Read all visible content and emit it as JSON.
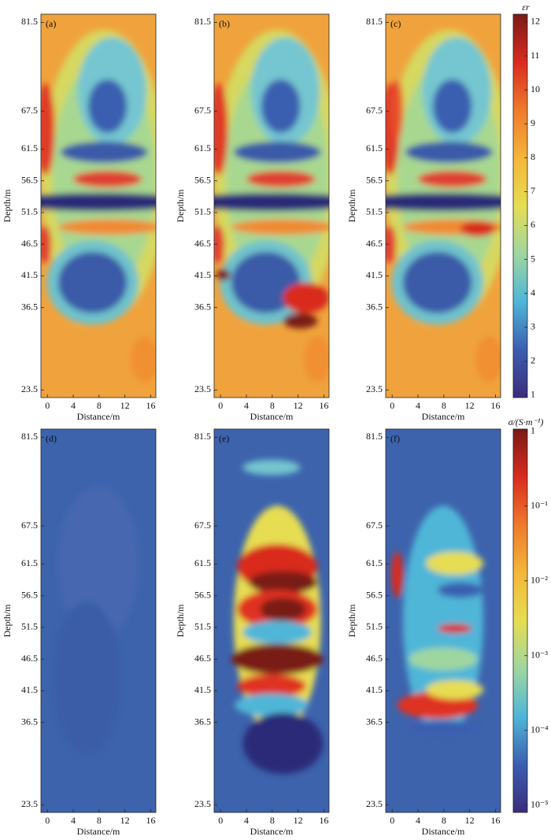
{
  "chart_data": [
    {
      "type": "heatmap",
      "panel_label": "(a)",
      "xlabel": "Distance/m",
      "ylabel": "Depth/m",
      "xlim": [
        -1,
        16.8
      ],
      "xticks": [
        0,
        4,
        8,
        12,
        16
      ],
      "ylim": [
        22.3,
        82.8
      ],
      "yticks": [
        23.5,
        36.5,
        41.5,
        46.5,
        51.5,
        56.5,
        61.5,
        67.5,
        81.5
      ]
    },
    {
      "type": "heatmap",
      "panel_label": "(b)",
      "xlabel": "Distance/m",
      "ylabel": "Depth/m",
      "xlim": [
        -1,
        16.8
      ],
      "xticks": [
        0,
        4,
        8,
        12,
        16
      ],
      "ylim": [
        22.3,
        82.8
      ],
      "yticks": [
        23.5,
        36.5,
        41.5,
        46.5,
        51.5,
        56.5,
        61.5,
        67.5,
        81.5
      ]
    },
    {
      "type": "heatmap",
      "panel_label": "(c)",
      "xlabel": "Distance/m",
      "ylabel": "Depth/m",
      "xlim": [
        -1,
        16.8
      ],
      "xticks": [
        0,
        4,
        8,
        12,
        16
      ],
      "ylim": [
        22.3,
        82.8
      ],
      "yticks": [
        23.5,
        36.5,
        41.5,
        46.5,
        51.5,
        56.5,
        61.5,
        67.5,
        81.5
      ]
    },
    {
      "type": "heatmap",
      "panel_label": "(d)",
      "xlabel": "Distance/m",
      "ylabel": "Depth/m",
      "xlim": [
        -1,
        16.8
      ],
      "xticks": [
        0,
        4,
        8,
        12,
        16
      ],
      "ylim": [
        22.3,
        82.8
      ],
      "yticks": [
        23.5,
        36.5,
        41.5,
        46.5,
        51.5,
        56.5,
        61.5,
        67.5,
        81.5
      ]
    },
    {
      "type": "heatmap",
      "panel_label": "(e)",
      "xlabel": "Distance/m",
      "ylabel": "Depth/m",
      "xlim": [
        -1,
        16.8
      ],
      "xticks": [
        0,
        4,
        8,
        12,
        16
      ],
      "ylim": [
        22.3,
        82.8
      ],
      "yticks": [
        23.5,
        36.5,
        41.5,
        46.5,
        51.5,
        56.5,
        61.5,
        67.5,
        81.5
      ]
    },
    {
      "type": "heatmap",
      "panel_label": "(f)",
      "xlabel": "Distance/m",
      "ylabel": "Depth/m",
      "xlim": [
        -1,
        16.8
      ],
      "xticks": [
        0,
        4,
        8,
        12,
        16
      ],
      "ylim": [
        22.3,
        82.8
      ],
      "yticks": [
        23.5,
        36.5,
        41.5,
        46.5,
        51.5,
        56.5,
        61.5,
        67.5,
        81.5
      ]
    },
    {
      "type": "colorbar",
      "label": "εr",
      "ylim": [
        0.93,
        12.23
      ],
      "yticks": [
        1,
        2,
        3,
        4,
        5,
        6,
        7,
        8,
        9,
        10,
        11,
        12
      ],
      "colors": [
        "#3b2c7e",
        "#3b5eb0",
        "#4fb6d8",
        "#9fd6a0",
        "#e6dd52",
        "#f4b63a",
        "#ee7a2c",
        "#d92b1f",
        "#7a1a16"
      ]
    },
    {
      "type": "colorbar",
      "label": "σ/(S·m⁻¹)",
      "log": true,
      "ylim": [
        8e-06,
        1.07
      ],
      "yticks": [
        {
          "value": 1,
          "label": "1"
        },
        {
          "value": 0.1,
          "label": "10⁻¹"
        },
        {
          "value": 0.01,
          "label": "10⁻²"
        },
        {
          "value": 0.001,
          "label": "10⁻³"
        },
        {
          "value": 0.0001,
          "label": "10⁻⁴"
        },
        {
          "value": 1e-05,
          "label": "10⁻⁵"
        }
      ],
      "colors": [
        "#3b2c7e",
        "#3b5eb0",
        "#4fb6d8",
        "#9fd6a0",
        "#e6dd52",
        "#f4b63a",
        "#ee7a2c",
        "#d92b1f",
        "#7a1a16"
      ]
    }
  ]
}
